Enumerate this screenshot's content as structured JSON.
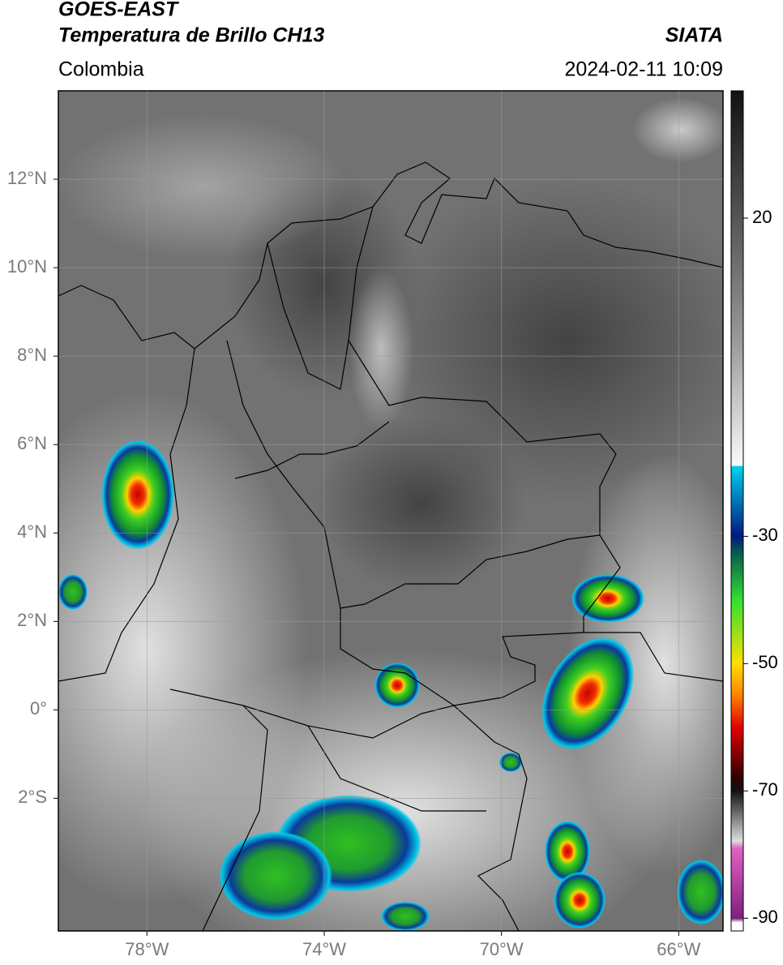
{
  "chart_data": {
    "type": "map",
    "title": "GOES-EAST",
    "subtitle": "Temperatura de Brillo CH13",
    "source": "SIATA",
    "region": "Colombia",
    "timestamp": "2024-02-11 10:09",
    "xlim": [
      -80,
      -65
    ],
    "ylim": [
      -5,
      14
    ],
    "xticks": [
      {
        "value": -78,
        "label": "78°W"
      },
      {
        "value": -74,
        "label": "74°W"
      },
      {
        "value": -70,
        "label": "70°W"
      },
      {
        "value": -66,
        "label": "66°W"
      }
    ],
    "yticks": [
      {
        "value": 12,
        "label": "12°N"
      },
      {
        "value": 10,
        "label": "10°N"
      },
      {
        "value": 8,
        "label": "8°N"
      },
      {
        "value": 6,
        "label": "6°N"
      },
      {
        "value": 4,
        "label": "4°N"
      },
      {
        "value": 2,
        "label": "2°N"
      },
      {
        "value": 0,
        "label": "0°"
      },
      {
        "value": -2,
        "label": "2°S"
      }
    ],
    "grid": true,
    "colorbar": {
      "lim": [
        -92,
        40
      ],
      "ticks": [
        20,
        -30,
        -50,
        -70,
        -90
      ]
    }
  }
}
